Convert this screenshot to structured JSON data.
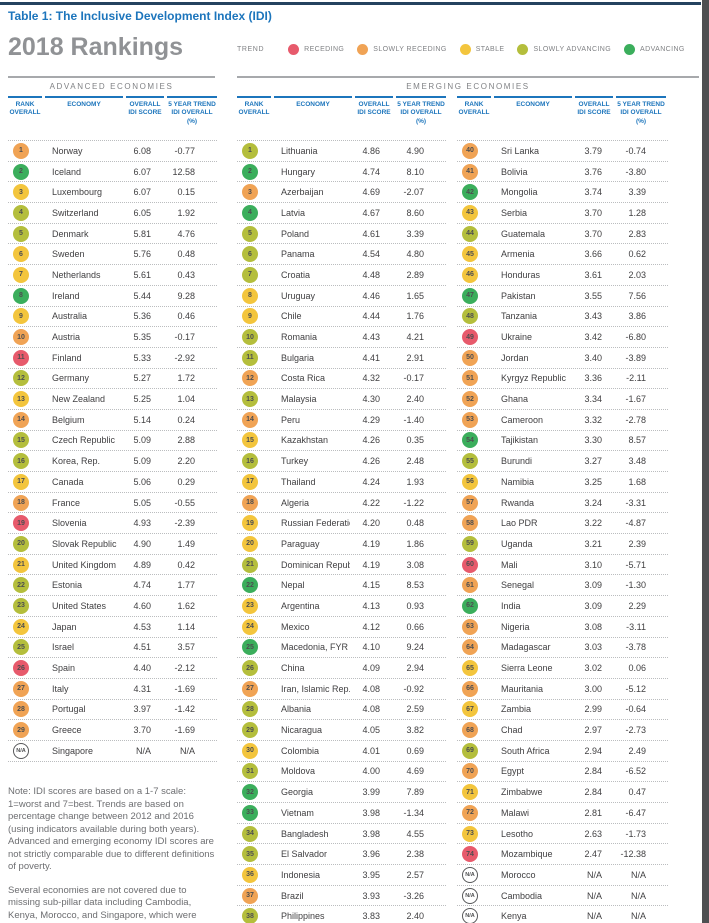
{
  "header": {
    "table_label": "Table 1: The Inclusive Development Index (IDI)",
    "heading": "2018 Rankings"
  },
  "legend": {
    "label": "TREND",
    "items": [
      {
        "label": "RECEDING",
        "color": "#E75A6C"
      },
      {
        "label": "SLOWLY RECEDING",
        "color": "#F0A355"
      },
      {
        "label": "STABLE",
        "color": "#F3C53D"
      },
      {
        "label": "SLOWLY ADVANCING",
        "color": "#B4BE3C"
      },
      {
        "label": "ADVANCING",
        "color": "#3BAE5C"
      }
    ]
  },
  "sections": {
    "advanced": "ADVANCED ECONOMIES",
    "emerging": "EMERGING ECONOMIES"
  },
  "column_headers": {
    "rank": "RANK OVERALL",
    "economy": "ECONOMY",
    "score": "OVERALL IDI SCORE",
    "trend": "5 YEAR TREND IDI OVERALL (%)"
  },
  "trend_colors": {
    "r": "#E75A6C",
    "sr": "#F0A355",
    "st": "#F3C53D",
    "sa": "#B4BE3C",
    "a": "#3BAE5C",
    "na": "#FFFFFF"
  },
  "colors": {
    "accent_blue": "#1C75BC",
    "rule_navy": "#24425F",
    "section_gray": "#808285"
  },
  "tables": {
    "advanced": [
      {
        "rank": "1",
        "economy": "Norway",
        "score": "6.08",
        "trend": "-0.77",
        "c": "sr"
      },
      {
        "rank": "2",
        "economy": "Iceland",
        "score": "6.07",
        "trend": "12.58",
        "c": "a"
      },
      {
        "rank": "3",
        "economy": "Luxembourg",
        "score": "6.07",
        "trend": "0.15",
        "c": "st"
      },
      {
        "rank": "4",
        "economy": "Switzerland",
        "score": "6.05",
        "trend": "1.92",
        "c": "sa"
      },
      {
        "rank": "5",
        "economy": "Denmark",
        "score": "5.81",
        "trend": "4.76",
        "c": "sa"
      },
      {
        "rank": "6",
        "economy": "Sweden",
        "score": "5.76",
        "trend": "0.48",
        "c": "st"
      },
      {
        "rank": "7",
        "economy": "Netherlands",
        "score": "5.61",
        "trend": "0.43",
        "c": "st"
      },
      {
        "rank": "8",
        "economy": "Ireland",
        "score": "5.44",
        "trend": "9.28",
        "c": "a"
      },
      {
        "rank": "9",
        "economy": "Australia",
        "score": "5.36",
        "trend": "0.46",
        "c": "st"
      },
      {
        "rank": "10",
        "economy": "Austria",
        "score": "5.35",
        "trend": "-0.17",
        "c": "sr"
      },
      {
        "rank": "11",
        "economy": "Finland",
        "score": "5.33",
        "trend": "-2.92",
        "c": "r"
      },
      {
        "rank": "12",
        "economy": "Germany",
        "score": "5.27",
        "trend": "1.72",
        "c": "sa"
      },
      {
        "rank": "13",
        "economy": "New Zealand",
        "score": "5.25",
        "trend": "1.04",
        "c": "st"
      },
      {
        "rank": "14",
        "economy": "Belgium",
        "score": "5.14",
        "trend": "0.24",
        "c": "sr"
      },
      {
        "rank": "15",
        "economy": "Czech Republic",
        "score": "5.09",
        "trend": "2.88",
        "c": "sa"
      },
      {
        "rank": "16",
        "economy": "Korea, Rep.",
        "score": "5.09",
        "trend": "2.20",
        "c": "sa"
      },
      {
        "rank": "17",
        "economy": "Canada",
        "score": "5.06",
        "trend": "0.29",
        "c": "st"
      },
      {
        "rank": "18",
        "economy": "France",
        "score": "5.05",
        "trend": "-0.55",
        "c": "sr"
      },
      {
        "rank": "19",
        "economy": "Slovenia",
        "score": "4.93",
        "trend": "-2.39",
        "c": "r"
      },
      {
        "rank": "20",
        "economy": "Slovak Republic",
        "score": "4.90",
        "trend": "1.49",
        "c": "sa"
      },
      {
        "rank": "21",
        "economy": "United Kingdom",
        "score": "4.89",
        "trend": "0.42",
        "c": "st"
      },
      {
        "rank": "22",
        "economy": "Estonia",
        "score": "4.74",
        "trend": "1.77",
        "c": "sa"
      },
      {
        "rank": "23",
        "economy": "United States",
        "score": "4.60",
        "trend": "1.62",
        "c": "sa"
      },
      {
        "rank": "24",
        "economy": "Japan",
        "score": "4.53",
        "trend": "1.14",
        "c": "st"
      },
      {
        "rank": "25",
        "economy": "Israel",
        "score": "4.51",
        "trend": "3.57",
        "c": "sa"
      },
      {
        "rank": "26",
        "economy": "Spain",
        "score": "4.40",
        "trend": "-2.12",
        "c": "r"
      },
      {
        "rank": "27",
        "economy": "Italy",
        "score": "4.31",
        "trend": "-1.69",
        "c": "sr"
      },
      {
        "rank": "28",
        "economy": "Portugal",
        "score": "3.97",
        "trend": "-1.42",
        "c": "sr"
      },
      {
        "rank": "29",
        "economy": "Greece",
        "score": "3.70",
        "trend": "-1.69",
        "c": "sr"
      },
      {
        "rank": "N/A",
        "economy": "Singapore",
        "score": "N/A",
        "trend": "N/A",
        "c": "na"
      }
    ],
    "emerging_a": [
      {
        "rank": "1",
        "economy": "Lithuania",
        "score": "4.86",
        "trend": "4.90",
        "c": "sa"
      },
      {
        "rank": "2",
        "economy": "Hungary",
        "score": "4.74",
        "trend": "8.10",
        "c": "a"
      },
      {
        "rank": "3",
        "economy": "Azerbaijan",
        "score": "4.69",
        "trend": "-2.07",
        "c": "sr"
      },
      {
        "rank": "4",
        "economy": "Latvia",
        "score": "4.67",
        "trend": "8.60",
        "c": "a"
      },
      {
        "rank": "5",
        "economy": "Poland",
        "score": "4.61",
        "trend": "3.39",
        "c": "sa"
      },
      {
        "rank": "6",
        "economy": "Panama",
        "score": "4.54",
        "trend": "4.80",
        "c": "sa"
      },
      {
        "rank": "7",
        "economy": "Croatia",
        "score": "4.48",
        "trend": "2.89",
        "c": "sa"
      },
      {
        "rank": "8",
        "economy": "Uruguay",
        "score": "4.46",
        "trend": "1.65",
        "c": "st"
      },
      {
        "rank": "9",
        "economy": "Chile",
        "score": "4.44",
        "trend": "1.76",
        "c": "st"
      },
      {
        "rank": "10",
        "economy": "Romania",
        "score": "4.43",
        "trend": "4.21",
        "c": "sa"
      },
      {
        "rank": "11",
        "economy": "Bulgaria",
        "score": "4.41",
        "trend": "2.91",
        "c": "sa"
      },
      {
        "rank": "12",
        "economy": "Costa Rica",
        "score": "4.32",
        "trend": "-0.17",
        "c": "sr"
      },
      {
        "rank": "13",
        "economy": "Malaysia",
        "score": "4.30",
        "trend": "2.40",
        "c": "sa"
      },
      {
        "rank": "14",
        "economy": "Peru",
        "score": "4.29",
        "trend": "-1.40",
        "c": "sr"
      },
      {
        "rank": "15",
        "economy": "Kazakhstan",
        "score": "4.26",
        "trend": "0.35",
        "c": "st"
      },
      {
        "rank": "16",
        "economy": "Turkey",
        "score": "4.26",
        "trend": "2.48",
        "c": "sa"
      },
      {
        "rank": "17",
        "economy": "Thailand",
        "score": "4.24",
        "trend": "1.93",
        "c": "st"
      },
      {
        "rank": "18",
        "economy": "Algeria",
        "score": "4.22",
        "trend": "-1.22",
        "c": "sr"
      },
      {
        "rank": "19",
        "economy": "Russian Federation",
        "score": "4.20",
        "trend": "0.48",
        "c": "st"
      },
      {
        "rank": "20",
        "economy": "Paraguay",
        "score": "4.19",
        "trend": "1.86",
        "c": "st"
      },
      {
        "rank": "21",
        "economy": "Dominican Republic",
        "score": "4.19",
        "trend": "3.08",
        "c": "sa"
      },
      {
        "rank": "22",
        "economy": "Nepal",
        "score": "4.15",
        "trend": "8.53",
        "c": "a"
      },
      {
        "rank": "23",
        "economy": "Argentina",
        "score": "4.13",
        "trend": "0.93",
        "c": "st"
      },
      {
        "rank": "24",
        "economy": "Mexico",
        "score": "4.12",
        "trend": "0.66",
        "c": "st"
      },
      {
        "rank": "25",
        "economy": "Macedonia, FYR",
        "score": "4.10",
        "trend": "9.24",
        "c": "a"
      },
      {
        "rank": "26",
        "economy": "China",
        "score": "4.09",
        "trend": "2.94",
        "c": "sa"
      },
      {
        "rank": "27",
        "economy": "Iran, Islamic Rep.",
        "score": "4.08",
        "trend": "-0.92",
        "c": "sr"
      },
      {
        "rank": "28",
        "economy": "Albania",
        "score": "4.08",
        "trend": "2.59",
        "c": "sa"
      },
      {
        "rank": "29",
        "economy": "Nicaragua",
        "score": "4.05",
        "trend": "3.82",
        "c": "sa"
      },
      {
        "rank": "30",
        "economy": "Colombia",
        "score": "4.01",
        "trend": "0.69",
        "c": "st"
      },
      {
        "rank": "31",
        "economy": "Moldova",
        "score": "4.00",
        "trend": "4.69",
        "c": "sa"
      },
      {
        "rank": "32",
        "economy": "Georgia",
        "score": "3.99",
        "trend": "7.89",
        "c": "a"
      },
      {
        "rank": "33",
        "economy": "Vietnam",
        "score": "3.98",
        "trend": "-1.34",
        "c": "a"
      },
      {
        "rank": "34",
        "economy": "Bangladesh",
        "score": "3.98",
        "trend": "4.55",
        "c": "sa"
      },
      {
        "rank": "35",
        "economy": "El Salvador",
        "score": "3.96",
        "trend": "2.38",
        "c": "sa"
      },
      {
        "rank": "36",
        "economy": "Indonesia",
        "score": "3.95",
        "trend": "2.57",
        "c": "st"
      },
      {
        "rank": "37",
        "economy": "Brazil",
        "score": "3.93",
        "trend": "-3.26",
        "c": "sr"
      },
      {
        "rank": "38",
        "economy": "Philippines",
        "score": "3.83",
        "trend": "2.40",
        "c": "sa"
      }
    ],
    "emerging_b": [
      {
        "rank": "40",
        "economy": "Sri Lanka",
        "score": "3.79",
        "trend": "-0.74",
        "c": "sr"
      },
      {
        "rank": "41",
        "economy": "Bolivia",
        "score": "3.76",
        "trend": "-3.80",
        "c": "sr"
      },
      {
        "rank": "42",
        "economy": "Mongolia",
        "score": "3.74",
        "trend": "3.39",
        "c": "a"
      },
      {
        "rank": "43",
        "economy": "Serbia",
        "score": "3.70",
        "trend": "1.28",
        "c": "st"
      },
      {
        "rank": "44",
        "economy": "Guatemala",
        "score": "3.70",
        "trend": "2.83",
        "c": "sa"
      },
      {
        "rank": "45",
        "economy": "Armenia",
        "score": "3.66",
        "trend": "0.62",
        "c": "st"
      },
      {
        "rank": "46",
        "economy": "Honduras",
        "score": "3.61",
        "trend": "2.03",
        "c": "st"
      },
      {
        "rank": "47",
        "economy": "Pakistan",
        "score": "3.55",
        "trend": "7.56",
        "c": "a"
      },
      {
        "rank": "48",
        "economy": "Tanzania",
        "score": "3.43",
        "trend": "3.86",
        "c": "sa"
      },
      {
        "rank": "49",
        "economy": "Ukraine",
        "score": "3.42",
        "trend": "-6.80",
        "c": "r"
      },
      {
        "rank": "50",
        "economy": "Jordan",
        "score": "3.40",
        "trend": "-3.89",
        "c": "sr"
      },
      {
        "rank": "51",
        "economy": "Kyrgyz Republic",
        "score": "3.36",
        "trend": "-2.11",
        "c": "sr"
      },
      {
        "rank": "52",
        "economy": "Ghana",
        "score": "3.34",
        "trend": "-1.67",
        "c": "sr"
      },
      {
        "rank": "53",
        "economy": "Cameroon",
        "score": "3.32",
        "trend": "-2.78",
        "c": "sr"
      },
      {
        "rank": "54",
        "economy": "Tajikistan",
        "score": "3.30",
        "trend": "8.57",
        "c": "a"
      },
      {
        "rank": "55",
        "economy": "Burundi",
        "score": "3.27",
        "trend": "3.48",
        "c": "sa"
      },
      {
        "rank": "56",
        "economy": "Namibia",
        "score": "3.25",
        "trend": "1.68",
        "c": "st"
      },
      {
        "rank": "57",
        "economy": "Rwanda",
        "score": "3.24",
        "trend": "-3.31",
        "c": "sr"
      },
      {
        "rank": "58",
        "economy": "Lao PDR",
        "score": "3.22",
        "trend": "-4.87",
        "c": "sr"
      },
      {
        "rank": "59",
        "economy": "Uganda",
        "score": "3.21",
        "trend": "2.39",
        "c": "sa"
      },
      {
        "rank": "60",
        "economy": "Mali",
        "score": "3.10",
        "trend": "-5.71",
        "c": "r"
      },
      {
        "rank": "61",
        "economy": "Senegal",
        "score": "3.09",
        "trend": "-1.30",
        "c": "sr"
      },
      {
        "rank": "62",
        "economy": "India",
        "score": "3.09",
        "trend": "2.29",
        "c": "a"
      },
      {
        "rank": "63",
        "economy": "Nigeria",
        "score": "3.08",
        "trend": "-3.11",
        "c": "sr"
      },
      {
        "rank": "64",
        "economy": "Madagascar",
        "score": "3.03",
        "trend": "-3.78",
        "c": "sr"
      },
      {
        "rank": "65",
        "economy": "Sierra Leone",
        "score": "3.02",
        "trend": "0.06",
        "c": "st"
      },
      {
        "rank": "66",
        "economy": "Mauritania",
        "score": "3.00",
        "trend": "-5.12",
        "c": "sr"
      },
      {
        "rank": "67",
        "economy": "Zambia",
        "score": "2.99",
        "trend": "-0.64",
        "c": "st"
      },
      {
        "rank": "68",
        "economy": "Chad",
        "score": "2.97",
        "trend": "-2.73",
        "c": "sr"
      },
      {
        "rank": "69",
        "economy": "South Africa",
        "score": "2.94",
        "trend": "2.49",
        "c": "sa"
      },
      {
        "rank": "70",
        "economy": "Egypt",
        "score": "2.84",
        "trend": "-6.52",
        "c": "sr"
      },
      {
        "rank": "71",
        "economy": "Zimbabwe",
        "score": "2.84",
        "trend": "0.47",
        "c": "st"
      },
      {
        "rank": "72",
        "economy": "Malawi",
        "score": "2.81",
        "trend": "-6.47",
        "c": "sr"
      },
      {
        "rank": "73",
        "economy": "Lesotho",
        "score": "2.63",
        "trend": "-1.73",
        "c": "st"
      },
      {
        "rank": "74",
        "economy": "Mozambique",
        "score": "2.47",
        "trend": "-12.38",
        "c": "r"
      },
      {
        "rank": "N/A",
        "economy": "Morocco",
        "score": "N/A",
        "trend": "N/A",
        "c": "na"
      },
      {
        "rank": "N/A",
        "economy": "Cambodia",
        "score": "N/A",
        "trend": "N/A",
        "c": "na"
      },
      {
        "rank": "N/A",
        "economy": "Kenya",
        "score": "N/A",
        "trend": "N/A",
        "c": "na"
      }
    ]
  },
  "notes": {
    "p1": "Note: IDI scores are based on a 1-7 scale: 1=worst and 7=best. Trends are based on percentage change between 2012 and 2016 (using indicators available during both years). Advanced and emerging economy IDI scores are not strictly comparable due to different definitions of poverty.",
    "p2": "Several economies are not covered due to missing sub-pillar data including Cambodia, Kenya, Morocco, and Singapore, which were missing"
  }
}
